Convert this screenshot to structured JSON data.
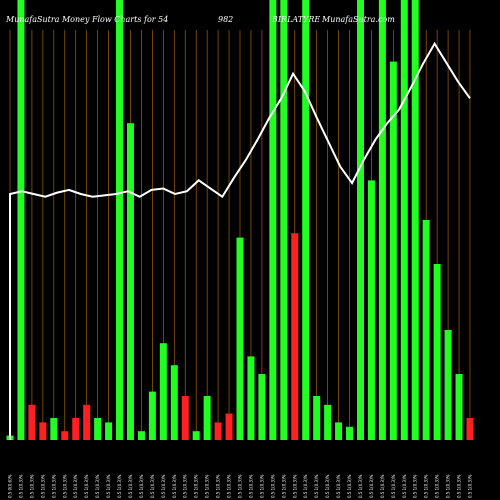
{
  "chart_data": {
    "type": "bar",
    "title": "MunafaSutra  Money Flow  Charts for 54",
    "title_fragment": "982",
    "title_right": "BIRLATYRE",
    "watermark": "MunafaSutra.com",
    "categories": [
      "0.5 0(0.6)%",
      "0.5 1(0.3)%",
      "0.5 1(0.3)%",
      "0.5 1(0.3)%",
      "0.5 1(0.3)%",
      "0.5 1(0.3)%",
      "0.5 1(0.3)%",
      "0.5 1(0.3)%",
      "0.5 1(0.3)%",
      "0.5 1(0.3)%",
      "0.5 1(0.3)%",
      "0.5 1(0.3)%",
      "0.5 1(0.3)%",
      "0.5 1(0.3)%",
      "0.5 1(0.3)%",
      "0.5 1(0.3)%",
      "0.5 1(0.3)%",
      "0.5 1(0.3)%",
      "0.5 1(0.3)%",
      "0.5 1(0.3)%",
      "0.5 1(0.3)%",
      "0.5 1(0.3)%",
      "0.5 1(0.3)%",
      "0.5 1(0.3)%",
      "0.5 1(0.3)%",
      "0.5 1(0.3)%",
      "0.5 1(0.3)%",
      "0.5 1(0.3)%",
      "0.5 1(0.3)%",
      "0.5 1(0.3)%",
      "0.5 1(0.3)%",
      "0.5 1(0.3)%",
      "0.5 1(0.3)%",
      "0.5 1(0.3)%",
      "0.5 1(0.3)%",
      "0.5 1(0.3)%",
      "0.5 1(0.3)%",
      "0.5 1(0.3)%",
      "0.5 1(0.3)%",
      "0.5 1(0.3)%",
      "0.5 1(0.3)%",
      "0.5 1(0.3)%",
      "0.5 1(0.3)%"
    ],
    "series": [
      {
        "values": [
          1,
          100,
          8,
          4,
          5,
          2,
          5,
          8,
          5,
          4,
          100,
          72,
          2,
          11,
          22,
          17,
          10,
          2,
          10,
          4,
          6,
          46,
          19,
          15,
          100,
          100,
          47,
          100,
          10,
          8,
          4,
          3,
          100,
          59,
          100,
          86,
          100,
          100,
          50,
          40,
          25,
          15,
          5
        ],
        "flows": [
          "up",
          "up",
          "down",
          "down",
          "up",
          "down",
          "down",
          "down",
          "up",
          "up",
          "up",
          "up",
          "up",
          "up",
          "up",
          "up",
          "down",
          "up",
          "up",
          "down",
          "down",
          "up",
          "up",
          "up",
          "up",
          "up",
          "down",
          "up",
          "up",
          "up",
          "up",
          "up",
          "up",
          "up",
          "up",
          "up",
          "up",
          "up",
          "up",
          "up",
          "up",
          "up",
          "down"
        ]
      }
    ],
    "line": [
      [
        0,
        180
      ],
      [
        1,
        182
      ],
      [
        2,
        180
      ],
      [
        3,
        178
      ],
      [
        4,
        181
      ],
      [
        5,
        183
      ],
      [
        6,
        180
      ],
      [
        7,
        178
      ],
      [
        8,
        179
      ],
      [
        9,
        180
      ],
      [
        10,
        182
      ],
      [
        11,
        178
      ],
      [
        12,
        183
      ],
      [
        13,
        184
      ],
      [
        14,
        180
      ],
      [
        15,
        182
      ],
      [
        16,
        190
      ],
      [
        17,
        184
      ],
      [
        18,
        178
      ],
      [
        19,
        192
      ],
      [
        20,
        205
      ],
      [
        21,
        220
      ],
      [
        22,
        236
      ],
      [
        23,
        250
      ],
      [
        24,
        268
      ],
      [
        25,
        255
      ],
      [
        26,
        236
      ],
      [
        27,
        218
      ],
      [
        28,
        200
      ],
      [
        29,
        188
      ],
      [
        30,
        205
      ],
      [
        31,
        220
      ],
      [
        32,
        232
      ],
      [
        33,
        242
      ],
      [
        34,
        258
      ],
      [
        35,
        275
      ],
      [
        36,
        290
      ],
      [
        37,
        276
      ],
      [
        38,
        262
      ],
      [
        39,
        250
      ]
    ],
    "ylim": [
      0,
      100
    ],
    "colors": {
      "up": "#22ff22",
      "down": "#ff2020",
      "background": "#000000",
      "line": "#ffffff",
      "gridline": "#a0640f",
      "text": "#ffffff"
    },
    "grid": true
  }
}
